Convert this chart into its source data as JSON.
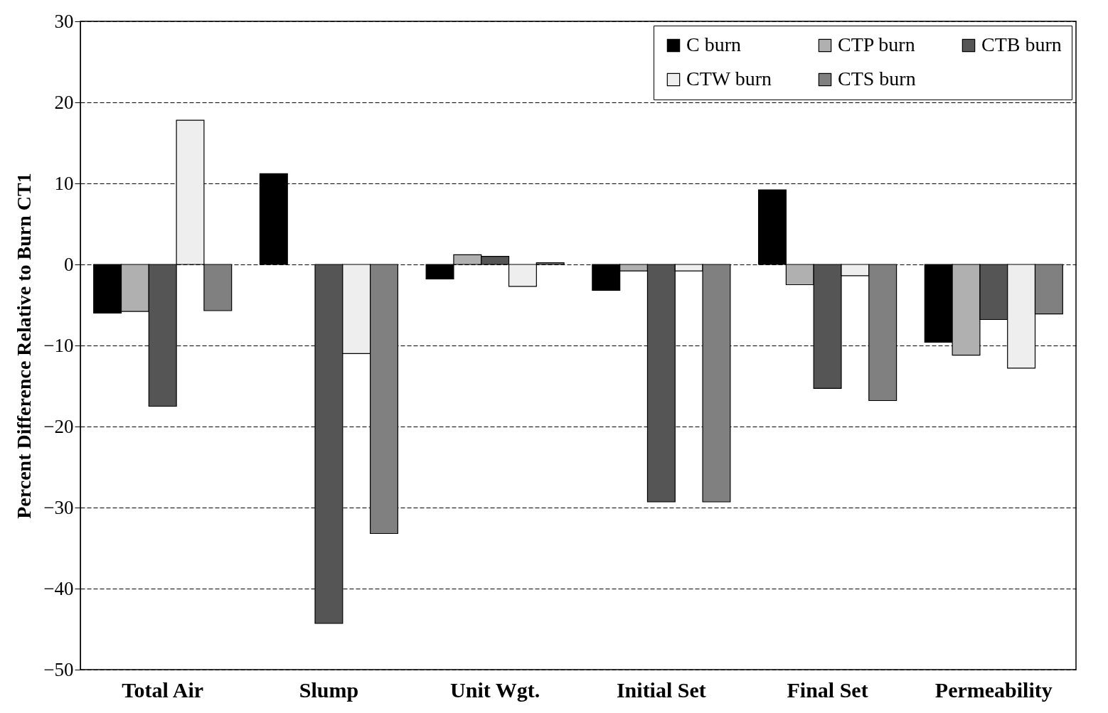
{
  "chart_data": {
    "type": "bar",
    "ylabel": "Percent Difference Relative to Burn CT1",
    "categories": [
      "Total Air",
      "Slump",
      "Unit Wgt.",
      "Initial Set",
      "Final Set",
      "Permeability"
    ],
    "series": [
      {
        "name": "C burn",
        "color": "#000000",
        "values": [
          -6.0,
          11.2,
          -1.8,
          -3.2,
          9.2,
          -9.6
        ]
      },
      {
        "name": "CTP burn",
        "color": "#b0b0b0",
        "values": [
          -5.8,
          null,
          1.2,
          -0.8,
          -2.5,
          -11.2
        ]
      },
      {
        "name": "CTB burn",
        "color": "#555555",
        "values": [
          -17.5,
          -44.3,
          1.0,
          -29.3,
          -15.3,
          -6.8
        ]
      },
      {
        "name": "CTW burn",
        "color": "#eeeeee",
        "values": [
          17.8,
          -11.0,
          -2.7,
          -0.8,
          -1.4,
          -12.8
        ]
      },
      {
        "name": "CTS burn",
        "color": "#808080",
        "values": [
          -5.7,
          -33.2,
          0.2,
          -29.3,
          -16.8,
          -6.1
        ]
      }
    ],
    "ylim": [
      -50,
      30
    ],
    "yticks": [
      -50,
      -40,
      -30,
      -20,
      -10,
      0,
      10,
      20,
      30
    ],
    "grid": "y",
    "legend": "top right"
  }
}
